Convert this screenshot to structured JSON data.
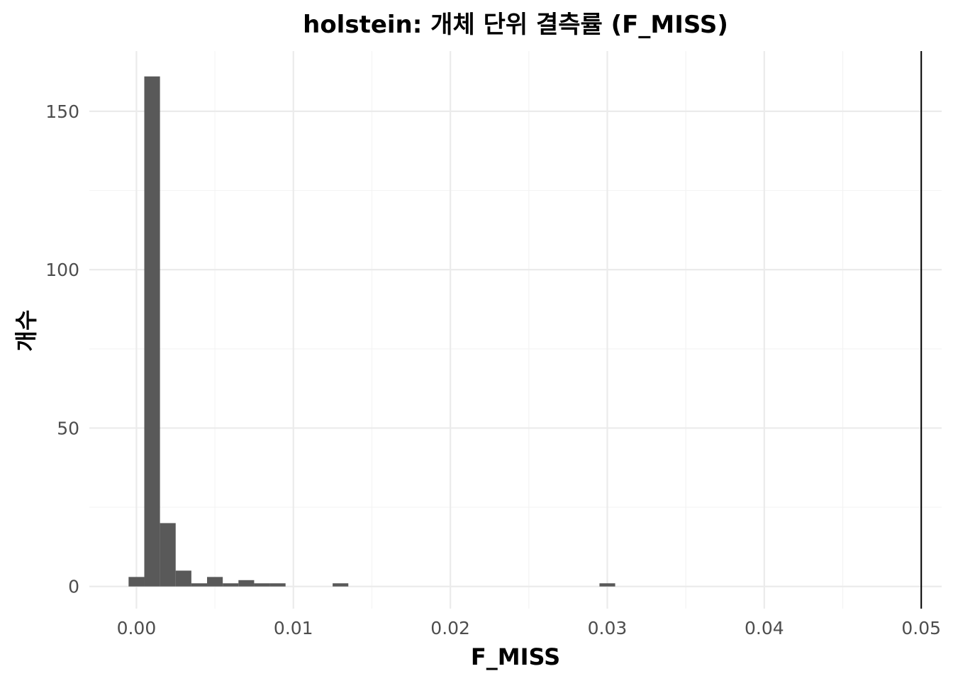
{
  "chart_data": {
    "type": "bar",
    "title": "holstein: 개체 단위 결측률 (F_MISS)",
    "xlabel": "F_MISS",
    "ylabel": "개수",
    "xlim": [
      -0.003,
      0.0513
    ],
    "ylim": [
      -7,
      169
    ],
    "x_ticks": [
      "0.00",
      "0.01",
      "0.02",
      "0.03",
      "0.04",
      "0.05"
    ],
    "x_tick_values": [
      0,
      0.01,
      0.02,
      0.03,
      0.04,
      0.05
    ],
    "y_ticks": [
      "0",
      "50",
      "100",
      "150"
    ],
    "y_tick_values": [
      0,
      50,
      100,
      150
    ],
    "bin_width": 0.001,
    "bins": [
      {
        "x0": -0.0005,
        "x1": 0.0005,
        "count": 3
      },
      {
        "x0": 0.0005,
        "x1": 0.0015,
        "count": 161
      },
      {
        "x0": 0.0015,
        "x1": 0.0025,
        "count": 20
      },
      {
        "x0": 0.0025,
        "x1": 0.0035,
        "count": 5
      },
      {
        "x0": 0.0035,
        "x1": 0.0045,
        "count": 1
      },
      {
        "x0": 0.0045,
        "x1": 0.0055,
        "count": 3
      },
      {
        "x0": 0.0055,
        "x1": 0.0065,
        "count": 1
      },
      {
        "x0": 0.0065,
        "x1": 0.0075,
        "count": 2
      },
      {
        "x0": 0.0075,
        "x1": 0.0085,
        "count": 1
      },
      {
        "x0": 0.0085,
        "x1": 0.0095,
        "count": 1
      },
      {
        "x0": 0.0125,
        "x1": 0.0135,
        "count": 1
      },
      {
        "x0": 0.0295,
        "x1": 0.0305,
        "count": 1
      }
    ],
    "threshold_line": 0.05,
    "grid": true,
    "legend": "none",
    "colors": {
      "bar": "#595959",
      "threshold": "#000000",
      "grid": "#ebebeb"
    }
  }
}
